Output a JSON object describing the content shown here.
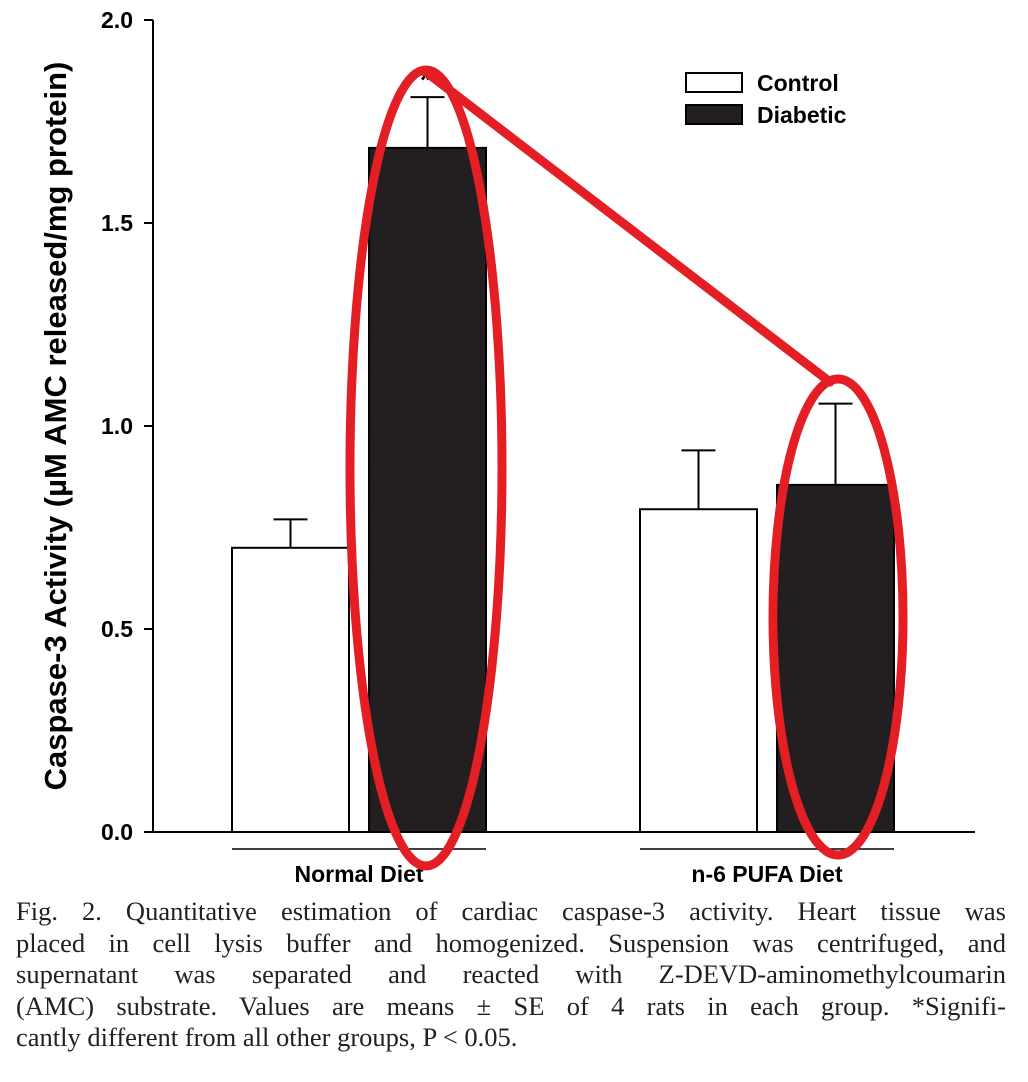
{
  "chart_data": {
    "type": "bar",
    "categories": [
      "Normal Diet",
      "n-6 PUFA Diet"
    ],
    "series": [
      {
        "name": "Control",
        "values": [
          0.7,
          0.795
        ],
        "errors": [
          0.07,
          0.145
        ],
        "color": "#ffffff"
      },
      {
        "name": "Diabetic",
        "values": [
          1.685,
          0.855
        ],
        "errors": [
          0.125,
          0.2
        ],
        "color": "#231f20"
      }
    ],
    "ylabel": "Caspase-3 Activity (µM AMC released/mg protein)",
    "xlabel": "",
    "ylim": [
      0,
      2.0
    ],
    "yticks": [
      0.0,
      0.5,
      1.0,
      1.5,
      2.0
    ],
    "ytick_labels": [
      "0.0",
      "0.5",
      "1.0",
      "1.5",
      "2.0"
    ],
    "legend": {
      "position": "top-right",
      "entries": [
        "Control",
        "Diabetic"
      ]
    },
    "annotations": [
      {
        "text": "*",
        "category": "Normal Diet",
        "series": "Diabetic"
      }
    ],
    "highlight_color": "#e31e24"
  },
  "caption": {
    "lines": [
      "Fig. 2.  Quantitative estimation of cardiac caspase-3 activity. Heart tissue was",
      "placed in cell lysis buffer and homogenized. Suspension was centrifuged, and",
      "supernatant was separated and reacted with Z-DEVD-aminomethylcoumarin",
      "(AMC) substrate. Values are means ± SE of 4 rats in each group. *Signifi-",
      "cantly different from all other groups, P < 0.05."
    ]
  }
}
